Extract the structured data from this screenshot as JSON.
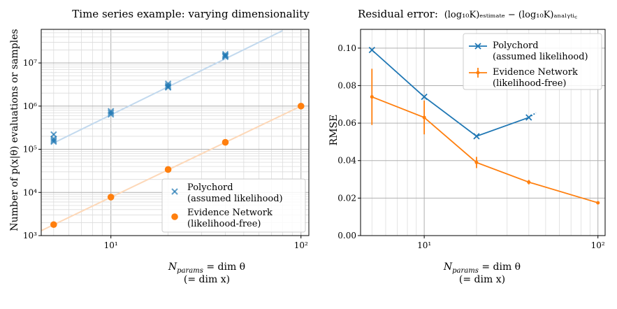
{
  "chart_data": [
    {
      "type": "scatter",
      "title": "Time series example: varying dimensionality",
      "xlabel": "N_params = dim θ",
      "xlabel_sub": "(= dim x)",
      "ylabel": "Number of p(x|θ) evaluations or samples",
      "x_scale": "log",
      "y_scale": "log",
      "xlim": [
        4.3,
        110
      ],
      "ylim": [
        1000,
        60000000
      ],
      "grid": true,
      "x_ticks": [
        {
          "value": 10,
          "label": "10¹"
        },
        {
          "value": 100,
          "label": "10²"
        }
      ],
      "y_ticks": [
        {
          "value": 1000,
          "label": "10³"
        },
        {
          "value": 10000,
          "label": "10⁴"
        },
        {
          "value": 100000,
          "label": "10⁵"
        },
        {
          "value": 1000000,
          "label": "10⁶"
        },
        {
          "value": 10000000,
          "label": "10⁷"
        }
      ],
      "legend_position": "lower-right",
      "series": [
        {
          "name": "Polychord",
          "name_line2": "(assumed likelihood)",
          "marker": "x",
          "color": "#1f77b4",
          "points": [
            [
              5,
              220000
            ],
            [
              5,
              175000
            ],
            [
              5,
              160000
            ],
            [
              5,
              150000
            ],
            [
              10,
              760000
            ],
            [
              10,
              700000
            ],
            [
              10,
              640000
            ],
            [
              20,
              3300000
            ],
            [
              20,
              3000000
            ],
            [
              20,
              2800000
            ],
            [
              20,
              2700000
            ],
            [
              40,
              16000000
            ],
            [
              40,
              15000000
            ],
            [
              40,
              14500000
            ],
            [
              40,
              13800000
            ]
          ],
          "fit_line": {
            "x": [
              5,
              80
            ],
            "y": [
              140000,
              56000000
            ]
          }
        },
        {
          "name": "Evidence Network",
          "name_line2": "(likelihood-free)",
          "marker": "o",
          "color": "#ff7f0e",
          "points": [
            [
              5,
              1800
            ],
            [
              10,
              7800
            ],
            [
              20,
              34000
            ],
            [
              40,
              145000
            ],
            [
              100,
              1000000
            ]
          ],
          "fit_line": {
            "x": [
              4.3,
              100
            ],
            "y": [
              1300,
              1000000
            ]
          }
        }
      ]
    },
    {
      "type": "line",
      "title_prefix": "Residual error:",
      "title_formula": "(log₁₀K)ₑₛₜᵢₘₐₜₑ − (log₁₀K)ₐₙₐₗᵧₜᵢ꜀",
      "xlabel": "N_params = dim θ",
      "xlabel_sub": "(= dim x)",
      "ylabel": "RMSE",
      "x_scale": "log",
      "xlim": [
        4.3,
        110
      ],
      "ylim": [
        0.0,
        0.11
      ],
      "grid": true,
      "x_ticks": [
        {
          "value": 10,
          "label": "10¹"
        },
        {
          "value": 100,
          "label": "10²"
        }
      ],
      "y_ticks": [
        {
          "value": 0.0,
          "label": "0.00"
        },
        {
          "value": 0.02,
          "label": "0.02"
        },
        {
          "value": 0.04,
          "label": "0.04"
        },
        {
          "value": 0.06,
          "label": "0.06"
        },
        {
          "value": 0.08,
          "label": "0.08"
        },
        {
          "value": 0.1,
          "label": "0.10"
        }
      ],
      "legend_position": "upper-right",
      "series": [
        {
          "name": "Polychord",
          "name_line2": "(assumed likelihood)",
          "marker": "x",
          "color": "#1f77b4",
          "x": [
            5,
            10,
            20,
            40
          ],
          "y": [
            0.099,
            0.074,
            0.053,
            0.063
          ],
          "dashed_extension": {
            "x": [
              40,
              44
            ],
            "y": [
              0.063,
              0.0655
            ]
          }
        },
        {
          "name": "Evidence Network",
          "name_line2": "(likelihood-free)",
          "marker": "errorbar",
          "color": "#ff7f0e",
          "x": [
            5,
            10,
            20,
            40,
            100
          ],
          "y": [
            0.074,
            0.063,
            0.039,
            0.0285,
            0.0175
          ],
          "yerr": [
            0.015,
            0.009,
            0.003,
            0.0012,
            0.0006
          ]
        }
      ]
    }
  ]
}
